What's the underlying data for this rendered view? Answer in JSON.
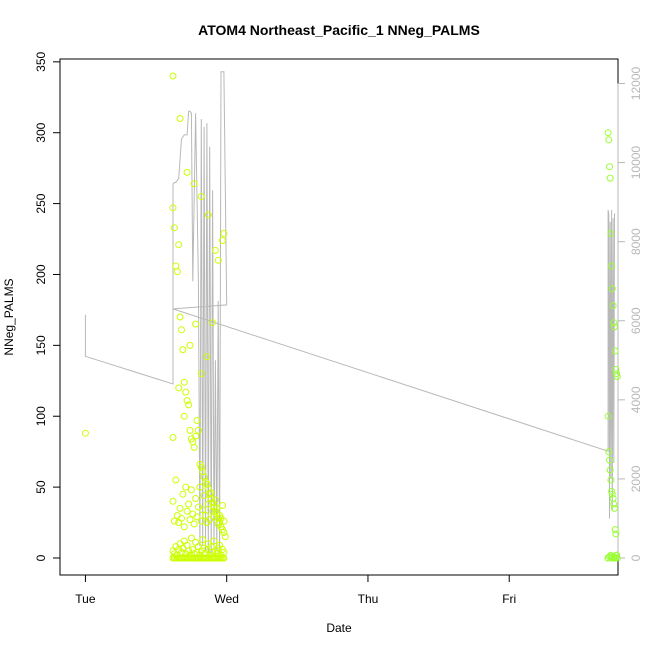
{
  "chart_data": {
    "type": "scatter",
    "title": "ATOM4 Northeast_Pacific_1 NNeg_PALMS",
    "xlabel": "Date",
    "ylabel": "NNeg_PALMS",
    "x_ticks": [
      "Tue",
      "Wed",
      "Thu",
      "Fri"
    ],
    "y_ticks": [
      "0",
      "50",
      "100",
      "150",
      "200",
      "250",
      "300",
      "350"
    ],
    "y2_ticks": [
      "0",
      "2000",
      "4000",
      "6000",
      "8000",
      "10000",
      "12000"
    ],
    "xlim_days": [
      -0.18,
      3.77
    ],
    "ylim": [
      -12,
      352
    ],
    "y2lim": [
      -430,
      12620
    ],
    "colors": {
      "points": "#ccff00",
      "points_alt": "#99ff33",
      "line": "#b8b8b8",
      "axis_right": "#b8b8b8"
    },
    "series": [
      {
        "kind": "points",
        "x_days": [
          0.0,
          0.62,
          0.63,
          0.64,
          0.65,
          0.66,
          0.67,
          0.68,
          0.69,
          0.7,
          0.71,
          0.72,
          0.73,
          0.74,
          0.75,
          0.76,
          0.77,
          0.78,
          0.79,
          0.8,
          0.81,
          0.82,
          0.83,
          0.84,
          0.85,
          0.86,
          0.87,
          0.88,
          0.89,
          0.9,
          0.91,
          0.92,
          0.93,
          0.94,
          0.95,
          0.96,
          0.97,
          0.98,
          0.99,
          0.62,
          0.63,
          0.64,
          0.65,
          0.66,
          0.67,
          0.68,
          0.69,
          0.7,
          0.71,
          0.72,
          0.73,
          0.74,
          0.75,
          0.76,
          0.77,
          0.78,
          0.79,
          0.8,
          0.81,
          0.82,
          0.83,
          0.84,
          0.85,
          0.86,
          0.87,
          0.88,
          0.89,
          0.9,
          0.91,
          0.92,
          0.93,
          0.94,
          0.95,
          0.96,
          0.97,
          0.98,
          0.62,
          0.63,
          0.64,
          0.65,
          0.66,
          0.67,
          0.68,
          0.69,
          0.7,
          0.71,
          0.72,
          0.73,
          0.74,
          0.75,
          0.76,
          0.77,
          0.78,
          0.79,
          0.8,
          0.81,
          0.82,
          0.83,
          0.84,
          0.85,
          0.86,
          0.87,
          0.88,
          0.89,
          0.9,
          0.91,
          0.92,
          0.93,
          0.94,
          0.95,
          0.96,
          0.97,
          0.98,
          0.62,
          0.63,
          0.64,
          0.65,
          0.66,
          0.67,
          0.68,
          0.69,
          0.7,
          0.71,
          0.72,
          0.73,
          0.74,
          0.75,
          0.76,
          0.77,
          0.78,
          0.79,
          0.8,
          0.81,
          0.82,
          0.83,
          0.84,
          0.85,
          0.86,
          0.87,
          0.88,
          0.89,
          0.9,
          0.91,
          0.92,
          0.93,
          0.94,
          0.95,
          0.96,
          0.97,
          0.98,
          0.62,
          0.66,
          0.7,
          0.74,
          0.78,
          0.82,
          0.86,
          0.9,
          0.94,
          0.98,
          0.62,
          0.67,
          0.72,
          0.77,
          0.82,
          0.87,
          0.92,
          0.97,
          3.7,
          3.705,
          3.71,
          3.715,
          3.72,
          3.725,
          3.73,
          3.735,
          3.74,
          3.745,
          3.75,
          3.755,
          3.76,
          3.765,
          3.7,
          3.705,
          3.71,
          3.715,
          3.72,
          3.725,
          3.73,
          3.735,
          3.74,
          3.745,
          3.75,
          3.755,
          3.76,
          3.765,
          3.7,
          3.71,
          3.72,
          3.73,
          3.74,
          3.75,
          3.76,
          3.7,
          3.72,
          3.74,
          3.76
        ],
        "y": [
          88,
          247,
          233,
          206,
          202,
          221,
          170,
          161,
          147,
          124,
          117,
          111,
          108,
          90,
          84,
          82,
          78,
          86,
          97,
          90,
          66,
          64,
          61,
          57,
          54,
          52,
          49,
          45,
          42,
          39,
          36,
          33,
          31,
          28,
          25,
          22,
          20,
          18,
          15,
          0,
          0,
          0,
          0,
          0,
          0,
          0,
          0,
          0,
          0,
          0,
          0,
          0,
          0,
          0,
          0,
          0,
          0,
          0,
          0,
          0,
          0,
          0,
          0,
          0,
          0,
          0,
          0,
          0,
          0,
          0,
          0,
          0,
          0,
          0,
          0,
          0,
          5,
          3,
          8,
          2,
          6,
          10,
          4,
          7,
          12,
          3,
          9,
          5,
          2,
          14,
          6,
          3,
          11,
          4,
          8,
          2,
          5,
          13,
          7,
          3,
          6,
          10,
          2,
          8,
          4,
          12,
          5,
          3,
          7,
          9,
          2,
          6,
          4,
          40,
          26,
          55,
          30,
          25,
          35,
          28,
          45,
          22,
          50,
          33,
          38,
          27,
          48,
          31,
          24,
          42,
          29,
          36,
          50,
          26,
          34,
          44,
          30,
          25,
          38,
          27,
          46,
          33,
          29,
          41,
          35,
          24,
          30,
          28,
          37,
          26,
          85,
          120,
          100,
          150,
          165,
          130,
          142,
          166,
          210,
          229,
          340,
          310,
          272,
          264,
          255,
          242,
          217,
          224,
          300,
          295,
          276,
          268,
          229,
          206,
          190,
          178,
          166,
          163,
          146,
          133,
          130,
          128,
          100,
          75,
          69,
          62,
          55,
          47,
          45,
          42,
          38,
          35,
          20,
          17,
          2,
          0,
          0,
          1,
          2,
          0,
          1,
          0,
          2,
          0,
          1,
          0,
          2
        ]
      },
      {
        "kind": "line",
        "axis": "right",
        "x_days": [
          0.0,
          0.0,
          0.62,
          0.62,
          0.63,
          0.64,
          0.66,
          0.68,
          0.7,
          0.72,
          0.73,
          0.74,
          0.75,
          0.76,
          0.78,
          0.8,
          0.81,
          0.82,
          0.83,
          0.84,
          0.85,
          0.86,
          0.87,
          0.88,
          0.89,
          0.9,
          0.91,
          0.92,
          0.93,
          0.94,
          0.95,
          0.96,
          0.98,
          1.0,
          1.0,
          0.62,
          0.62,
          3.7,
          3.7,
          3.705,
          3.71,
          3.715,
          3.72,
          3.725,
          3.73,
          3.735,
          3.74,
          3.745,
          3.75
        ],
        "y2": [
          6150,
          5100,
          4400,
          9450,
          9500,
          9500,
          9600,
          10600,
          10700,
          10700,
          11300,
          11300,
          11250,
          7000,
          11250,
          7000,
          300,
          11100,
          300,
          10900,
          200,
          11000,
          100,
          10400,
          100,
          9300,
          200,
          5000,
          200,
          6500,
          100,
          12300,
          12300,
          6400,
          6400,
          6300,
          6300,
          2700,
          8800,
          8700,
          1000,
          8500,
          2000,
          8800,
          1200,
          8600,
          2400,
          8700,
          8700
        ]
      }
    ]
  }
}
